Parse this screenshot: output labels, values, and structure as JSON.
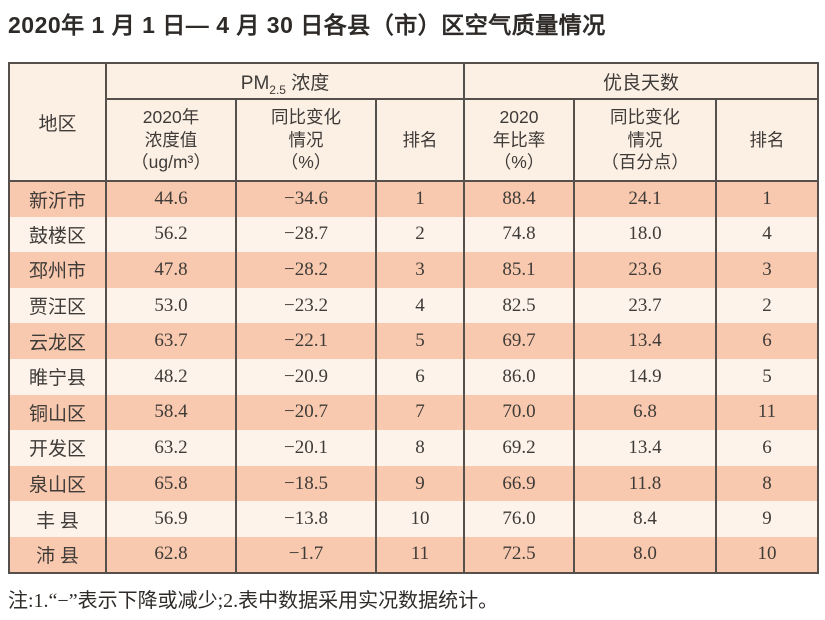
{
  "colors": {
    "border": "#55504c",
    "header_background": "#fcf0e5",
    "row_salmon": "#f8c9ae",
    "row_light": "#fdf3ea",
    "text": "#3f3b38"
  },
  "chart_data": {
    "type": "table",
    "title": "2020年 1 月 1 日— 4 月 30 日各县（市）区空气质量情况",
    "header": {
      "region": "地区",
      "pm_group": {
        "base": "PM",
        "sub": "2.5",
        "suffix": " 浓度"
      },
      "good_group": "优良天数",
      "sub": {
        "pm_value": "2020年\n浓度值\n（ug/m³）",
        "pm_change": "同比变化\n情况\n（%）",
        "pm_rank": "排名",
        "good_ratio": "2020\n年比率\n（%）",
        "good_change": "同比变化\n情况\n（百分点）",
        "good_rank": "排名"
      }
    },
    "rows": [
      {
        "region": "新沂市",
        "pm_value": "44.6",
        "pm_change": "−34.6",
        "pm_rank": "1",
        "good_ratio": "88.4",
        "good_change": "24.1",
        "good_rank": "1"
      },
      {
        "region": "鼓楼区",
        "pm_value": "56.2",
        "pm_change": "−28.7",
        "pm_rank": "2",
        "good_ratio": "74.8",
        "good_change": "18.0",
        "good_rank": "4"
      },
      {
        "region": "邳州市",
        "pm_value": "47.8",
        "pm_change": "−28.2",
        "pm_rank": "3",
        "good_ratio": "85.1",
        "good_change": "23.6",
        "good_rank": "3"
      },
      {
        "region": "贾汪区",
        "pm_value": "53.0",
        "pm_change": "−23.2",
        "pm_rank": "4",
        "good_ratio": "82.5",
        "good_change": "23.7",
        "good_rank": "2"
      },
      {
        "region": "云龙区",
        "pm_value": "63.7",
        "pm_change": "−22.1",
        "pm_rank": "5",
        "good_ratio": "69.7",
        "good_change": "13.4",
        "good_rank": "6"
      },
      {
        "region": "睢宁县",
        "pm_value": "48.2",
        "pm_change": "−20.9",
        "pm_rank": "6",
        "good_ratio": "86.0",
        "good_change": "14.9",
        "good_rank": "5"
      },
      {
        "region": "铜山区",
        "pm_value": "58.4",
        "pm_change": "−20.7",
        "pm_rank": "7",
        "good_ratio": "70.0",
        "good_change": "6.8",
        "good_rank": "11"
      },
      {
        "region": "开发区",
        "pm_value": "63.2",
        "pm_change": "−20.1",
        "pm_rank": "8",
        "good_ratio": "69.2",
        "good_change": "13.4",
        "good_rank": "6"
      },
      {
        "region": "泉山区",
        "pm_value": "65.8",
        "pm_change": "−18.5",
        "pm_rank": "9",
        "good_ratio": "66.9",
        "good_change": "11.8",
        "good_rank": "8"
      },
      {
        "region": "丰 县",
        "pm_value": "56.9",
        "pm_change": "−13.8",
        "pm_rank": "10",
        "good_ratio": "76.0",
        "good_change": "8.4",
        "good_rank": "9"
      },
      {
        "region": "沛 县",
        "pm_value": "62.8",
        "pm_change": "−1.7",
        "pm_rank": "11",
        "good_ratio": "72.5",
        "good_change": "8.0",
        "good_rank": "10"
      }
    ],
    "note": "注:1.“−”表示下降或减少;2.表中数据采用实况数据统计。"
  }
}
